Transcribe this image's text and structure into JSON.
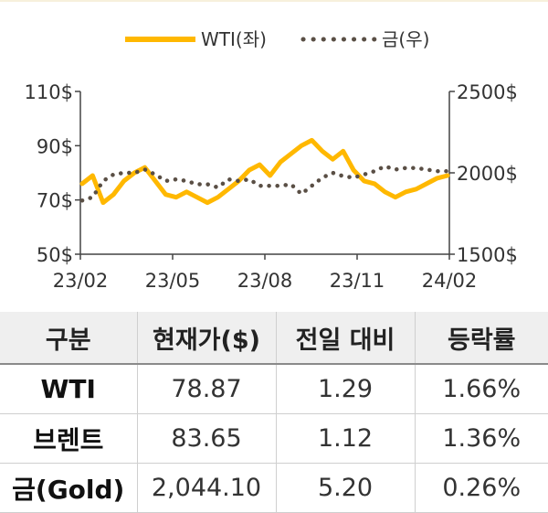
{
  "chart_data": {
    "type": "line",
    "x_ticks": [
      "23/02",
      "23/05",
      "23/08",
      "23/11",
      "24/02"
    ],
    "y_left_ticks": [
      "50$",
      "70$",
      "90$",
      "110$"
    ],
    "y_left_range": [
      50,
      110
    ],
    "y_right_ticks": [
      "1500$",
      "2000$",
      "2500$"
    ],
    "y_right_range": [
      1500,
      2500
    ],
    "legend_position": "top",
    "series": [
      {
        "name": "WTI(좌)",
        "axis": "left",
        "style": "solid",
        "color": "#FFB800",
        "x": [
          "23/02",
          "23/02",
          "23/03",
          "23/03",
          "23/03",
          "23/04",
          "23/04",
          "23/04",
          "23/05",
          "23/05",
          "23/05",
          "23/06",
          "23/06",
          "23/06",
          "23/07",
          "23/07",
          "23/07",
          "23/08",
          "23/08",
          "23/08",
          "23/09",
          "23/09",
          "23/09",
          "23/10",
          "23/10",
          "23/10",
          "23/11",
          "23/11",
          "23/11",
          "23/12",
          "23/12",
          "23/12",
          "24/01",
          "24/01",
          "24/01",
          "24/02"
        ],
        "values": [
          76,
          79,
          69,
          72,
          77,
          80,
          82,
          77,
          72,
          71,
          73,
          71,
          69,
          71,
          74,
          77,
          81,
          83,
          79,
          84,
          87,
          90,
          92,
          88,
          85,
          88,
          81,
          77,
          76,
          73,
          71,
          73,
          74,
          76,
          78,
          79
        ]
      },
      {
        "name": "금(우)",
        "axis": "right",
        "style": "dotted",
        "color": "#5a4f45",
        "x": [
          "23/02",
          "23/02",
          "23/03",
          "23/03",
          "23/03",
          "23/04",
          "23/04",
          "23/04",
          "23/05",
          "23/05",
          "23/05",
          "23/06",
          "23/06",
          "23/06",
          "23/07",
          "23/07",
          "23/07",
          "23/08",
          "23/08",
          "23/08",
          "23/09",
          "23/09",
          "23/09",
          "23/10",
          "23/10",
          "23/10",
          "23/11",
          "23/11",
          "23/11",
          "23/12",
          "23/12",
          "23/12",
          "24/01",
          "24/01",
          "24/01",
          "24/02"
        ],
        "values": [
          1830,
          1850,
          1950,
          1990,
          2000,
          2000,
          2020,
          1990,
          1950,
          1960,
          1950,
          1930,
          1930,
          1910,
          1960,
          1950,
          1960,
          1920,
          1920,
          1920,
          1930,
          1870,
          1920,
          1970,
          2000,
          1980,
          1970,
          1990,
          2010,
          2040,
          2020,
          2030,
          2030,
          2020,
          2010,
          2010
        ]
      }
    ]
  },
  "table": {
    "headers": [
      "구분",
      "현재가($)",
      "전일 대비",
      "등락률"
    ],
    "rows": [
      {
        "label": "WTI",
        "price": "78.87",
        "change": "1.29",
        "rate": "1.66%"
      },
      {
        "label": "브렌트",
        "price": "83.65",
        "change": "1.12",
        "rate": "1.36%"
      },
      {
        "label": "금(Gold)",
        "price": "2,044.10",
        "change": "5.20",
        "rate": "0.26%"
      }
    ]
  }
}
